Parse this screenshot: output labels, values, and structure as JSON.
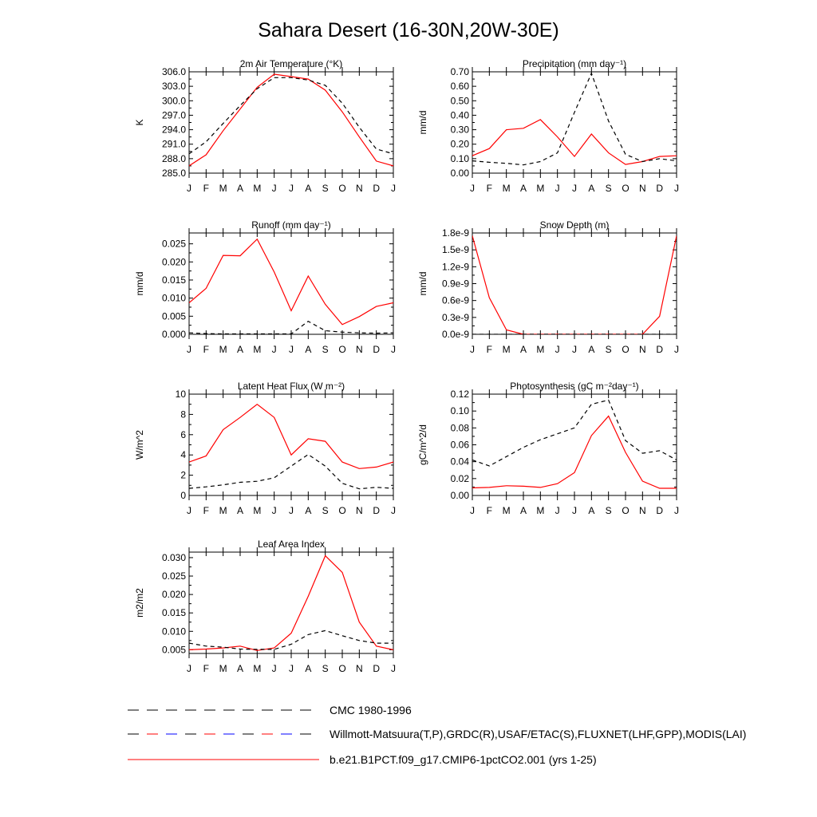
{
  "figure": {
    "title": "Sahara Desert (16-30N,20W-30E)"
  },
  "months": [
    "J",
    "F",
    "M",
    "A",
    "M",
    "J",
    "J",
    "A",
    "S",
    "O",
    "N",
    "D",
    "J"
  ],
  "legend": {
    "items": [
      {
        "label": "CMC 1980-1996",
        "style": "dashed",
        "colors": [
          "#000000"
        ]
      },
      {
        "label": "Willmott-Matsuura(T,P),GRDC(R),USAF/ETAC(S),FLUXNET(LHF,GPP),MODIS(LAI)",
        "style": "dashed",
        "colors": [
          "#000000",
          "#ff0000",
          "#0000ff"
        ]
      },
      {
        "label": "b.e21.B1PCT.f09_g17.CMIP6-1pctCO2.001 (yrs 1-25)",
        "style": "solid",
        "colors": [
          "#ff0000"
        ]
      }
    ]
  },
  "colors": {
    "model": "#ff0000",
    "obs": "#000000"
  },
  "chart_data": [
    {
      "type": "line",
      "title": "2m Air Temperature (°K)",
      "ylabel": "K",
      "ylim": [
        285.0,
        306.0
      ],
      "yticks": [
        "306.0",
        "303.0",
        "300.0",
        "297.0",
        "294.0",
        "291.0",
        "288.0",
        "285.0"
      ],
      "ytick_values": [
        306,
        303,
        300,
        297,
        294,
        291,
        288,
        285
      ],
      "x": [
        "J",
        "F",
        "M",
        "A",
        "M",
        "J",
        "J",
        "A",
        "S",
        "O",
        "N",
        "D",
        "J"
      ],
      "series": [
        {
          "style": "solid",
          "color": "#ff0000",
          "values": [
            286.5,
            288.8,
            293.8,
            298.3,
            302.8,
            305.5,
            305.0,
            304.5,
            302.2,
            297.7,
            292.5,
            287.5,
            286.5
          ]
        },
        {
          "style": "dashed",
          "color": "#000000",
          "values": [
            289.0,
            291.5,
            295.3,
            299.0,
            302.5,
            304.8,
            304.8,
            304.3,
            303.2,
            299.5,
            294.5,
            290.0,
            289.0
          ]
        }
      ]
    },
    {
      "type": "line",
      "title": "Precipitation (mm day⁻¹)",
      "ylabel": "mm/d",
      "ylim": [
        0.0,
        0.7
      ],
      "yticks": [
        "0.70",
        "0.60",
        "0.50",
        "0.40",
        "0.30",
        "0.20",
        "0.10",
        "0.00"
      ],
      "ytick_values": [
        0.7,
        0.6,
        0.5,
        0.4,
        0.3,
        0.2,
        0.1,
        0.0
      ],
      "x": [
        "J",
        "F",
        "M",
        "A",
        "M",
        "J",
        "J",
        "A",
        "S",
        "O",
        "N",
        "D",
        "J"
      ],
      "series": [
        {
          "style": "solid",
          "color": "#ff0000",
          "values": [
            0.12,
            0.17,
            0.3,
            0.31,
            0.37,
            0.25,
            0.115,
            0.27,
            0.14,
            0.06,
            0.08,
            0.115,
            0.12
          ]
        },
        {
          "style": "dashed",
          "color": "#000000",
          "values": [
            0.085,
            0.075,
            0.068,
            0.057,
            0.08,
            0.14,
            0.42,
            0.69,
            0.36,
            0.13,
            0.08,
            0.1,
            0.085
          ]
        }
      ]
    },
    {
      "type": "line",
      "title": "Runoff (mm day⁻¹)",
      "ylabel": "mm/d",
      "ylim": [
        0.0,
        0.028
      ],
      "yticks": [
        "0.025",
        "0.020",
        "0.015",
        "0.010",
        "0.005",
        "0.000"
      ],
      "ytick_values": [
        0.025,
        0.02,
        0.015,
        0.01,
        0.005,
        0.0
      ],
      "x": [
        "J",
        "F",
        "M",
        "A",
        "M",
        "J",
        "J",
        "A",
        "S",
        "O",
        "N",
        "D",
        "J"
      ],
      "series": [
        {
          "style": "solid",
          "color": "#ff0000",
          "values": [
            0.0087,
            0.0127,
            0.0218,
            0.0217,
            0.0263,
            0.0172,
            0.0065,
            0.0161,
            0.0083,
            0.0027,
            0.0049,
            0.0077,
            0.0087
          ]
        },
        {
          "style": "dashed",
          "color": "#000000",
          "values": [
            0.0004,
            0.0002,
            0.0001,
            0.0001,
            0.0001,
            0.0001,
            0.0001,
            0.0036,
            0.001,
            0.0006,
            0.0004,
            0.0003,
            0.0004
          ]
        }
      ]
    },
    {
      "type": "line",
      "title": "Snow Depth (m)",
      "ylabel": "mm/d",
      "ylim": [
        0.0,
        1.8e-09
      ],
      "yticks": [
        "1.8e-9",
        "1.5e-9",
        "1.2e-9",
        "0.9e-9",
        "0.6e-9",
        "0.3e-9",
        "0.0e-9"
      ],
      "ytick_values": [
        1.8e-09,
        1.5e-09,
        1.2e-09,
        9e-10,
        6e-10,
        3e-10,
        0.0
      ],
      "x": [
        "J",
        "F",
        "M",
        "A",
        "M",
        "J",
        "J",
        "A",
        "S",
        "O",
        "N",
        "D",
        "J"
      ],
      "series": [
        {
          "style": "solid",
          "color": "#ff0000",
          "values": [
            1.75e-09,
            6.5e-10,
            8e-11,
            0.0,
            0.0,
            0.0,
            0.0,
            0.0,
            0.0,
            0.0,
            0.0,
            3.2e-10,
            1.75e-09
          ]
        },
        {
          "style": "dashed",
          "color": "#000000",
          "values": [
            0.0,
            0.0,
            0.0,
            0.0,
            0.0,
            0.0,
            0.0,
            0.0,
            0.0,
            0.0,
            0.0,
            0.0,
            0.0
          ]
        }
      ]
    },
    {
      "type": "line",
      "title": "Latent Heat Flux (W m⁻²)",
      "ylabel": "W/m^2",
      "ylim": [
        0,
        10
      ],
      "yticks": [
        "10",
        "8",
        "6",
        "4",
        "2",
        "0"
      ],
      "ytick_values": [
        10,
        8,
        6,
        4,
        2,
        0
      ],
      "x": [
        "J",
        "F",
        "M",
        "A",
        "M",
        "J",
        "J",
        "A",
        "S",
        "O",
        "N",
        "D",
        "J"
      ],
      "series": [
        {
          "style": "solid",
          "color": "#ff0000",
          "values": [
            3.3,
            3.9,
            6.5,
            7.7,
            9.0,
            7.7,
            4.0,
            5.6,
            5.35,
            3.3,
            2.65,
            2.8,
            3.3
          ]
        },
        {
          "style": "dashed",
          "color": "#000000",
          "values": [
            0.7,
            0.85,
            1.05,
            1.3,
            1.4,
            1.75,
            2.9,
            4.05,
            2.9,
            1.2,
            0.65,
            0.8,
            0.7
          ]
        }
      ]
    },
    {
      "type": "line",
      "title": "Photosynthesis (gC m⁻²day⁻¹)",
      "ylabel": "gC/m^2/d",
      "ylim": [
        0.0,
        0.12
      ],
      "yticks": [
        "0.12",
        "0.10",
        "0.08",
        "0.06",
        "0.04",
        "0.02",
        "0.00"
      ],
      "ytick_values": [
        0.12,
        0.1,
        0.08,
        0.06,
        0.04,
        0.02,
        0.0
      ],
      "x": [
        "J",
        "F",
        "M",
        "A",
        "M",
        "J",
        "J",
        "A",
        "S",
        "O",
        "N",
        "D",
        "J"
      ],
      "series": [
        {
          "style": "solid",
          "color": "#ff0000",
          "values": [
            0.009,
            0.0095,
            0.0115,
            0.011,
            0.0095,
            0.014,
            0.027,
            0.071,
            0.094,
            0.051,
            0.017,
            0.0085,
            0.0085
          ]
        },
        {
          "style": "dashed",
          "color": "#000000",
          "values": [
            0.042,
            0.035,
            0.046,
            0.057,
            0.066,
            0.073,
            0.08,
            0.108,
            0.113,
            0.065,
            0.05,
            0.053,
            0.042
          ]
        }
      ]
    },
    {
      "type": "line",
      "title": "Leaf Area Index",
      "ylabel": "m2/m2",
      "ylim": [
        0.004,
        0.0315
      ],
      "yticks": [
        "0.030",
        "0.025",
        "0.020",
        "0.015",
        "0.010",
        "0.005"
      ],
      "ytick_values": [
        0.03,
        0.025,
        0.02,
        0.015,
        0.01,
        0.005
      ],
      "x": [
        "J",
        "F",
        "M",
        "A",
        "M",
        "J",
        "J",
        "A",
        "S",
        "O",
        "N",
        "D",
        "J"
      ],
      "series": [
        {
          "style": "solid",
          "color": "#ff0000",
          "values": [
            0.005,
            0.0052,
            0.0055,
            0.006,
            0.0048,
            0.0055,
            0.0095,
            0.0195,
            0.0305,
            0.026,
            0.0125,
            0.006,
            0.005
          ]
        },
        {
          "style": "dashed",
          "color": "#000000",
          "values": [
            0.0068,
            0.006,
            0.0057,
            0.0052,
            0.0051,
            0.0051,
            0.0065,
            0.0091,
            0.0102,
            0.0088,
            0.0075,
            0.0068,
            0.0068
          ]
        }
      ]
    }
  ]
}
